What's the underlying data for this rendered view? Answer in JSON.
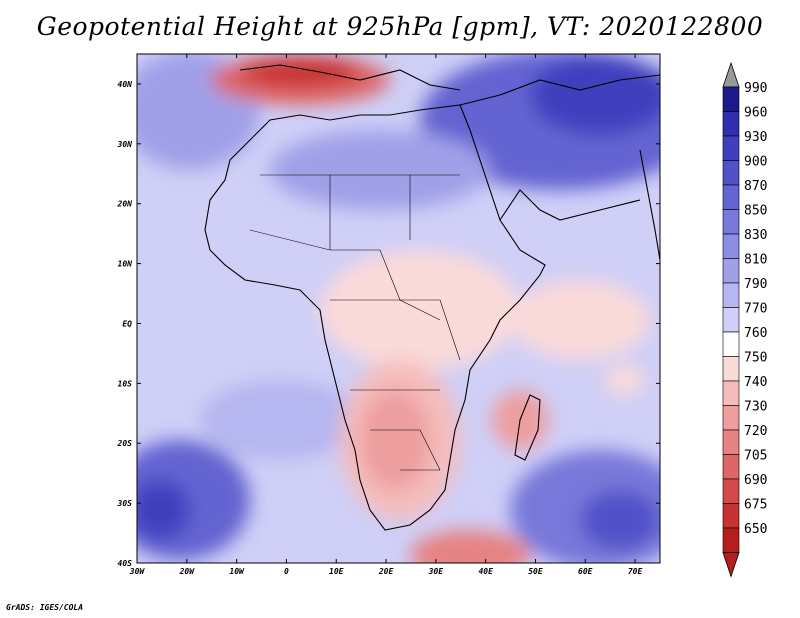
{
  "title": "Geopotential Height at 925hPa [gpm], VT: 2020122800",
  "credit": "GrADS: IGES/COLA",
  "map": {
    "region": "Africa",
    "lat_labels": [
      "40N",
      "30N",
      "20N",
      "10N",
      "EQ",
      "10S",
      "20S",
      "30S",
      "40S"
    ],
    "lat_values": [
      40,
      30,
      20,
      10,
      0,
      -10,
      -20,
      -30,
      -40
    ],
    "lon_labels": [
      "30W",
      "20W",
      "10W",
      "0",
      "10E",
      "20E",
      "30E",
      "40E",
      "50E",
      "60E",
      "70E"
    ],
    "lon_values": [
      -30,
      -20,
      -10,
      0,
      10,
      20,
      30,
      40,
      50,
      60,
      70
    ],
    "lon_range": [
      -30,
      75
    ],
    "lat_range": [
      -40,
      45
    ]
  },
  "colorbar": {
    "levels": [
      "990",
      "960",
      "930",
      "900",
      "870",
      "850",
      "830",
      "810",
      "790",
      "770",
      "760",
      "750",
      "740",
      "730",
      "720",
      "705",
      "690",
      "675",
      "650"
    ],
    "colors": [
      "#1a1a8c",
      "#2e2eb0",
      "#3f3fbf",
      "#5151c9",
      "#6464d2",
      "#7878da",
      "#8c8ce2",
      "#a0a0e9",
      "#b6b6f0",
      "#cfcff7",
      "#ffffff",
      "#fbdada",
      "#f5bcbc",
      "#ee9e9e",
      "#e68282",
      "#de6666",
      "#d34a4a",
      "#c83232",
      "#b51e1e"
    ],
    "top_arrow_color": "#999999",
    "bottom_arrow_color": "#b51e1e"
  }
}
